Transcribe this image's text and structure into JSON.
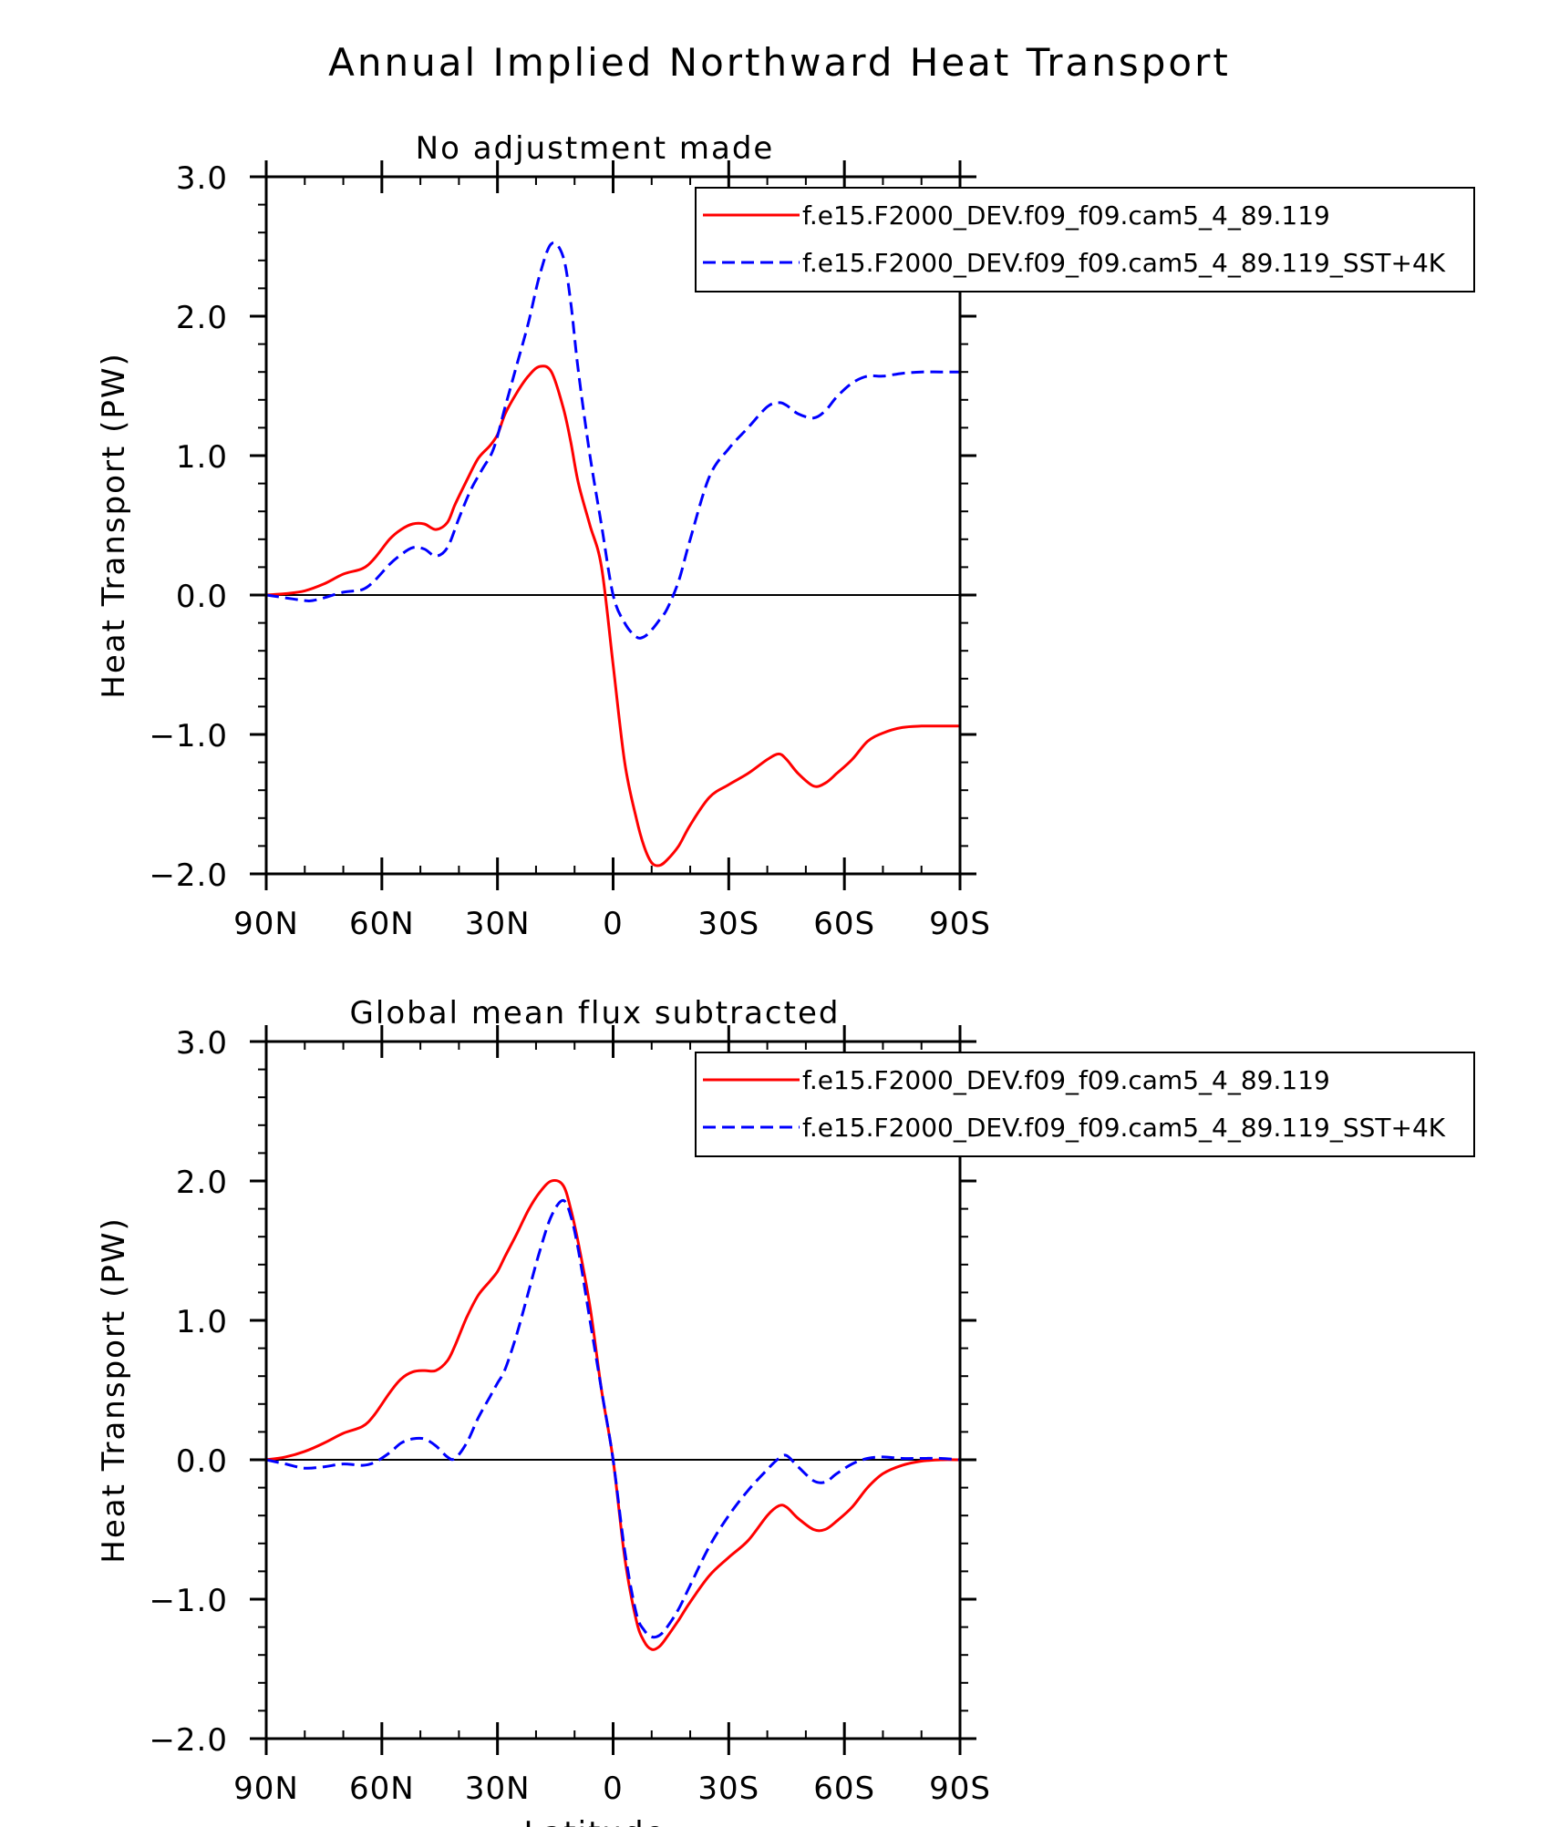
{
  "figure_title": "Annual Implied Northward Heat Transport",
  "colors": {
    "series1": "#ff0000",
    "series2": "#0000ff",
    "axis": "#000000"
  },
  "chart_data": [
    {
      "type": "line",
      "title": "No adjustment made",
      "xlabel": "",
      "ylabel": "Heat Transport (PW)",
      "xlim": [
        90,
        -90
      ],
      "ylim": [
        -2.0,
        3.0
      ],
      "x_tick_values": [
        90,
        60,
        30,
        0,
        -30,
        -60,
        -90
      ],
      "x_tick_labels": [
        "90N",
        "60N",
        "30N",
        "0",
        "30S",
        "60S",
        "90S"
      ],
      "y_tick_values": [
        -2.0,
        -1.0,
        0.0,
        1.0,
        2.0,
        3.0
      ],
      "y_tick_labels": [
        "−2.0",
        "−1.0",
        "0.0",
        "1.0",
        "2.0",
        "3.0"
      ],
      "zero_line": true,
      "legend_position": "top-right",
      "series": [
        {
          "name": "f.e15.F2000_DEV.f09_f09.cam5_4_89.119",
          "color": "#ff0000",
          "style": "solid",
          "x": [
            90,
            85,
            80,
            75,
            70,
            65,
            62,
            58,
            55,
            52,
            49,
            46,
            43,
            41,
            38,
            35,
            32,
            30,
            28,
            25,
            22,
            19,
            16,
            13,
            11,
            9,
            6,
            3,
            0,
            -3,
            -6,
            -8,
            -10,
            -12,
            -14,
            -17,
            -20,
            -25,
            -30,
            -35,
            -40,
            -43,
            -45,
            -48,
            -52,
            -55,
            -58,
            -62,
            -66,
            -70,
            -75,
            -80,
            -85,
            -90
          ],
          "y": [
            0.0,
            0.01,
            0.03,
            0.08,
            0.15,
            0.19,
            0.26,
            0.4,
            0.47,
            0.51,
            0.51,
            0.47,
            0.52,
            0.65,
            0.82,
            0.98,
            1.07,
            1.15,
            1.3,
            1.45,
            1.57,
            1.64,
            1.6,
            1.35,
            1.1,
            0.8,
            0.5,
            0.2,
            -0.5,
            -1.2,
            -1.6,
            -1.8,
            -1.92,
            -1.94,
            -1.9,
            -1.8,
            -1.65,
            -1.45,
            -1.36,
            -1.28,
            -1.18,
            -1.14,
            -1.18,
            -1.28,
            -1.37,
            -1.35,
            -1.28,
            -1.18,
            -1.05,
            -0.99,
            -0.95,
            -0.94,
            -0.94,
            -0.94
          ]
        },
        {
          "name": "f.e15.F2000_DEV.f09_f09.cam5_4_89.119_SST+4K",
          "color": "#0000ff",
          "style": "dashed",
          "x": [
            90,
            85,
            80,
            78,
            75,
            70,
            65,
            62,
            58,
            55,
            52,
            49,
            46,
            43,
            40,
            37,
            34,
            31,
            28,
            25,
            22,
            19,
            16,
            13,
            11,
            9,
            6,
            3,
            0,
            -3,
            -6,
            -8,
            -10,
            -12,
            -14,
            -17,
            -20,
            -25,
            -30,
            -35,
            -40,
            -43,
            -45,
            -48,
            -52,
            -55,
            -58,
            -62,
            -66,
            -70,
            -75,
            -80,
            -85,
            -90
          ],
          "y": [
            0.0,
            -0.02,
            -0.04,
            -0.04,
            -0.02,
            0.02,
            0.04,
            0.1,
            0.22,
            0.29,
            0.34,
            0.33,
            0.28,
            0.34,
            0.55,
            0.75,
            0.9,
            1.05,
            1.35,
            1.65,
            1.95,
            2.3,
            2.52,
            2.43,
            2.1,
            1.6,
            1.0,
            0.5,
            0.0,
            -0.2,
            -0.3,
            -0.3,
            -0.25,
            -0.18,
            -0.1,
            0.1,
            0.4,
            0.85,
            1.05,
            1.2,
            1.35,
            1.38,
            1.36,
            1.3,
            1.27,
            1.32,
            1.42,
            1.52,
            1.57,
            1.57,
            1.59,
            1.6,
            1.6,
            1.6
          ]
        }
      ]
    },
    {
      "type": "line",
      "title": "Global mean flux subtracted",
      "xlabel": "Latitude",
      "ylabel": "Heat Transport (PW)",
      "xlim": [
        90,
        -90
      ],
      "ylim": [
        -2.0,
        3.0
      ],
      "x_tick_values": [
        90,
        60,
        30,
        0,
        -30,
        -60,
        -90
      ],
      "x_tick_labels": [
        "90N",
        "60N",
        "30N",
        "0",
        "30S",
        "60S",
        "90S"
      ],
      "y_tick_values": [
        -2.0,
        -1.0,
        0.0,
        1.0,
        2.0,
        3.0
      ],
      "y_tick_labels": [
        "−2.0",
        "−1.0",
        "0.0",
        "1.0",
        "2.0",
        "3.0"
      ],
      "zero_line": true,
      "legend_position": "top-right",
      "series": [
        {
          "name": "f.e15.F2000_DEV.f09_f09.cam5_4_89.119",
          "color": "#ff0000",
          "style": "solid",
          "x": [
            90,
            85,
            80,
            75,
            70,
            65,
            62,
            58,
            55,
            52,
            49,
            46,
            43,
            41,
            38,
            35,
            32,
            30,
            28,
            25,
            22,
            19,
            16,
            13,
            11,
            9,
            6,
            3,
            0,
            -3,
            -6,
            -8,
            -10,
            -12,
            -14,
            -17,
            -20,
            -25,
            -30,
            -35,
            -40,
            -43,
            -45,
            -48,
            -52,
            -55,
            -58,
            -62,
            -66,
            -70,
            -75,
            -80,
            -85,
            -90
          ],
          "y": [
            0.0,
            0.02,
            0.06,
            0.12,
            0.19,
            0.24,
            0.32,
            0.48,
            0.58,
            0.63,
            0.64,
            0.64,
            0.71,
            0.82,
            1.02,
            1.18,
            1.28,
            1.35,
            1.46,
            1.62,
            1.79,
            1.92,
            2.0,
            1.97,
            1.8,
            1.55,
            1.1,
            0.5,
            0.0,
            -0.7,
            -1.15,
            -1.3,
            -1.36,
            -1.34,
            -1.27,
            -1.15,
            -1.02,
            -0.83,
            -0.7,
            -0.58,
            -0.4,
            -0.33,
            -0.34,
            -0.42,
            -0.5,
            -0.5,
            -0.44,
            -0.34,
            -0.2,
            -0.1,
            -0.04,
            -0.01,
            0.0,
            0.0
          ]
        },
        {
          "name": "f.e15.F2000_DEV.f09_f09.cam5_4_89.119_SST+4K",
          "color": "#0000ff",
          "style": "dashed",
          "x": [
            90,
            85,
            80,
            75,
            70,
            65,
            62,
            58,
            55,
            52,
            49,
            46,
            43,
            41,
            38,
            35,
            32,
            30,
            28,
            25,
            22,
            19,
            16,
            13,
            11,
            9,
            6,
            3,
            0,
            -3,
            -6,
            -8,
            -10,
            -12,
            -14,
            -17,
            -20,
            -25,
            -30,
            -35,
            -40,
            -43,
            -45,
            -48,
            -52,
            -55,
            -58,
            -62,
            -66,
            -70,
            -75,
            -80,
            -85,
            -90
          ],
          "y": [
            0.0,
            -0.03,
            -0.06,
            -0.05,
            -0.03,
            -0.04,
            -0.02,
            0.05,
            0.12,
            0.15,
            0.15,
            0.1,
            0.02,
            0.01,
            0.12,
            0.3,
            0.45,
            0.55,
            0.65,
            0.9,
            1.2,
            1.5,
            1.75,
            1.86,
            1.75,
            1.5,
            1.0,
            0.5,
            0.0,
            -0.65,
            -1.1,
            -1.22,
            -1.27,
            -1.26,
            -1.2,
            -1.07,
            -0.9,
            -0.62,
            -0.4,
            -0.22,
            -0.07,
            0.01,
            0.03,
            -0.05,
            -0.15,
            -0.16,
            -0.1,
            -0.03,
            0.01,
            0.02,
            0.01,
            0.01,
            0.01,
            0.0
          ]
        }
      ]
    }
  ]
}
